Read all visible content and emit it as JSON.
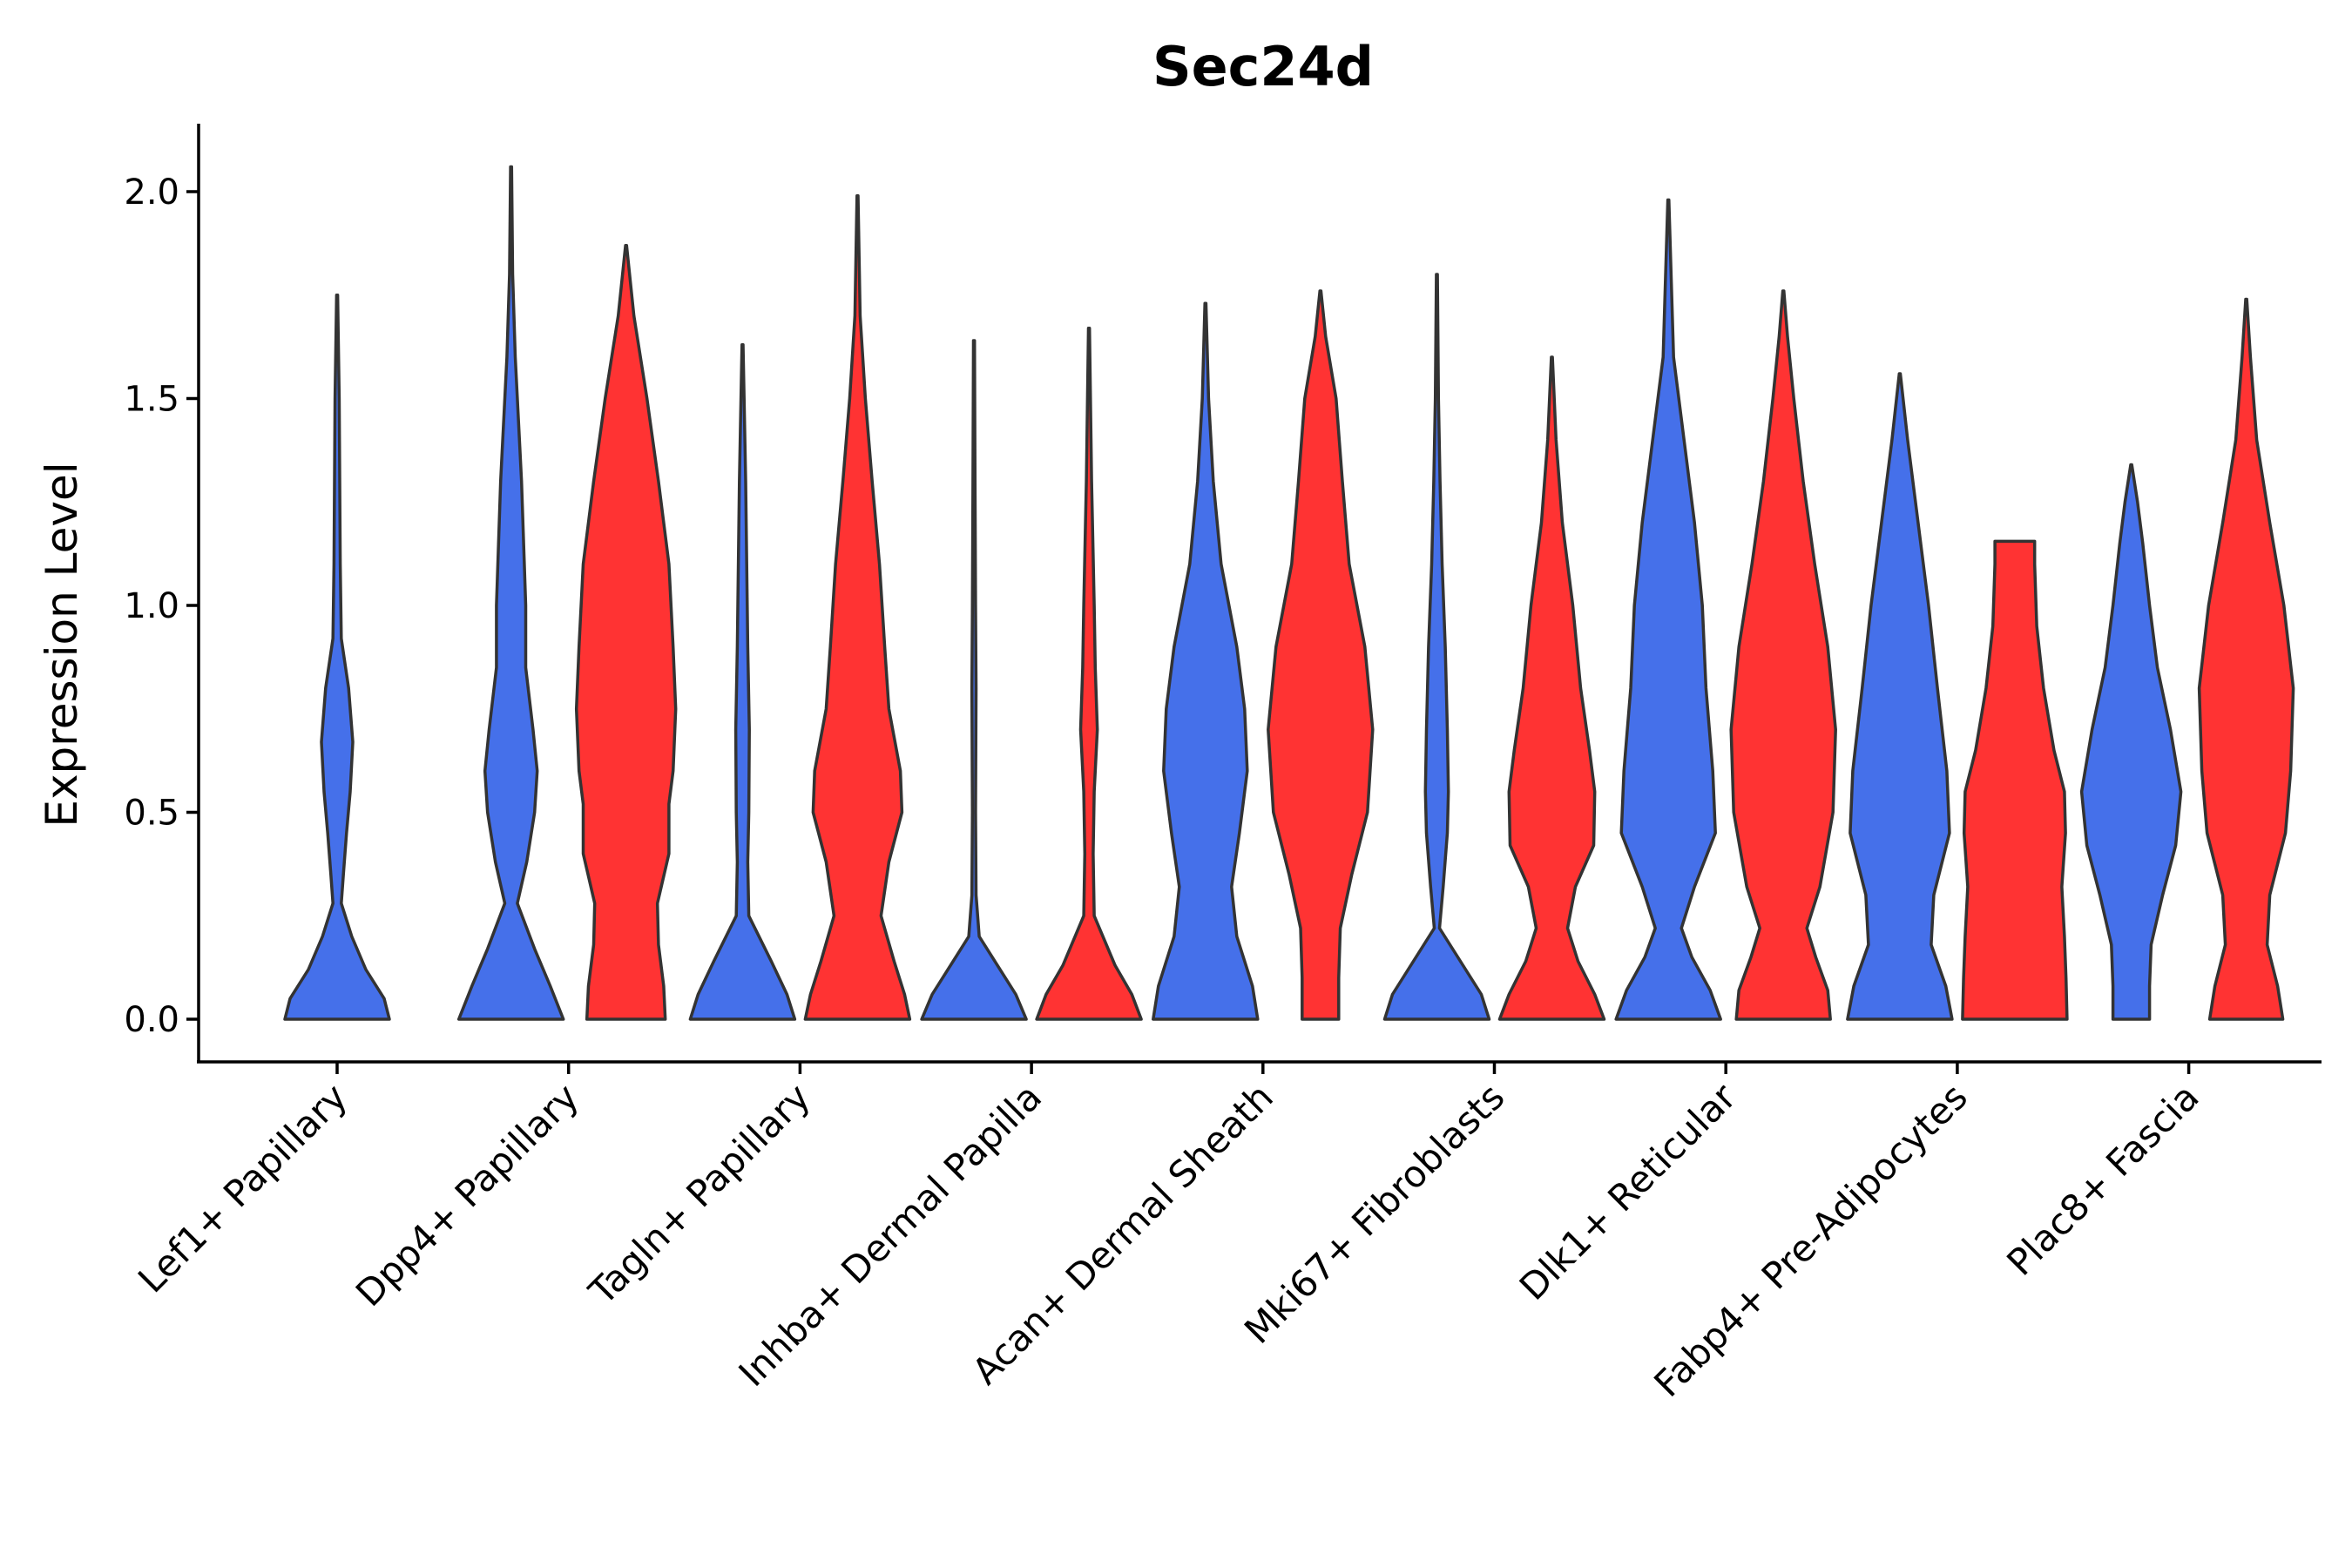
{
  "chart_data": {
    "type": "violin",
    "title": "Sec24d",
    "xlabel": "",
    "ylabel": "Expression Level",
    "ylim": [
      -0.1,
      2.15
    ],
    "yticks": [
      0.0,
      0.5,
      1.0,
      1.5,
      2.0
    ],
    "ytick_labels": [
      "0.0",
      "0.5",
      "1.0",
      "1.5",
      "2.0"
    ],
    "colors": {
      "blue": "#4570ea",
      "red": "#ff3333",
      "outline": "#333333"
    },
    "groups": [
      {
        "name": "Lef1+ Papillary",
        "violins": [
          {
            "color": "blue",
            "offset": 0,
            "max": 1.75,
            "profile": [
              [
                0,
                1.0
              ],
              [
                0.05,
                0.9
              ],
              [
                0.12,
                0.55
              ],
              [
                0.2,
                0.28
              ],
              [
                0.28,
                0.08
              ],
              [
                0.35,
                0.12
              ],
              [
                0.45,
                0.18
              ],
              [
                0.55,
                0.25
              ],
              [
                0.67,
                0.3
              ],
              [
                0.8,
                0.22
              ],
              [
                0.92,
                0.08
              ],
              [
                1.1,
                0.06
              ],
              [
                1.3,
                0.05
              ],
              [
                1.5,
                0.04
              ],
              [
                1.75,
                0.01
              ]
            ]
          }
        ]
      },
      {
        "name": "Dpp4+ Papillary",
        "violins": [
          {
            "color": "blue",
            "offset": -0.38,
            "max": 2.06,
            "profile": [
              [
                0,
                1.0
              ],
              [
                0.08,
                0.75
              ],
              [
                0.17,
                0.45
              ],
              [
                0.28,
                0.12
              ],
              [
                0.38,
                0.3
              ],
              [
                0.5,
                0.45
              ],
              [
                0.6,
                0.5
              ],
              [
                0.7,
                0.42
              ],
              [
                0.85,
                0.28
              ],
              [
                1.0,
                0.28
              ],
              [
                1.3,
                0.2
              ],
              [
                1.6,
                0.08
              ],
              [
                1.8,
                0.03
              ],
              [
                2.06,
                0.01
              ]
            ]
          },
          {
            "color": "red",
            "offset": 0.38,
            "max": 1.87,
            "profile": [
              [
                0,
                0.75
              ],
              [
                0.08,
                0.72
              ],
              [
                0.18,
                0.62
              ],
              [
                0.28,
                0.6
              ],
              [
                0.4,
                0.82
              ],
              [
                0.52,
                0.82
              ],
              [
                0.6,
                0.9
              ],
              [
                0.75,
                0.95
              ],
              [
                0.9,
                0.9
              ],
              [
                1.1,
                0.82
              ],
              [
                1.3,
                0.62
              ],
              [
                1.5,
                0.4
              ],
              [
                1.7,
                0.15
              ],
              [
                1.87,
                0.01
              ]
            ]
          }
        ]
      },
      {
        "name": "Tagln+ Papillary",
        "violins": [
          {
            "color": "blue",
            "offset": -0.38,
            "max": 1.63,
            "profile": [
              [
                0,
                1.0
              ],
              [
                0.06,
                0.85
              ],
              [
                0.14,
                0.55
              ],
              [
                0.25,
                0.12
              ],
              [
                0.38,
                0.1
              ],
              [
                0.5,
                0.12
              ],
              [
                0.7,
                0.13
              ],
              [
                0.9,
                0.1
              ],
              [
                1.1,
                0.08
              ],
              [
                1.3,
                0.06
              ],
              [
                1.5,
                0.03
              ],
              [
                1.63,
                0.01
              ]
            ]
          },
          {
            "color": "red",
            "offset": 0.38,
            "max": 1.99,
            "profile": [
              [
                0,
                1.0
              ],
              [
                0.06,
                0.9
              ],
              [
                0.14,
                0.7
              ],
              [
                0.25,
                0.45
              ],
              [
                0.38,
                0.6
              ],
              [
                0.5,
                0.85
              ],
              [
                0.6,
                0.82
              ],
              [
                0.75,
                0.6
              ],
              [
                0.9,
                0.52
              ],
              [
                1.1,
                0.42
              ],
              [
                1.3,
                0.28
              ],
              [
                1.5,
                0.15
              ],
              [
                1.7,
                0.05
              ],
              [
                1.99,
                0.01
              ]
            ]
          }
        ]
      },
      {
        "name": "Inhba+ Dermal Papilla",
        "violins": [
          {
            "color": "blue",
            "offset": -0.38,
            "max": 1.64,
            "profile": [
              [
                0,
                1.0
              ],
              [
                0.06,
                0.8
              ],
              [
                0.13,
                0.45
              ],
              [
                0.2,
                0.1
              ],
              [
                0.3,
                0.04
              ],
              [
                0.5,
                0.03
              ],
              [
                0.8,
                0.04
              ],
              [
                1.0,
                0.03
              ],
              [
                1.3,
                0.02
              ],
              [
                1.64,
                0.01
              ]
            ]
          },
          {
            "color": "red",
            "offset": 0.38,
            "max": 1.67,
            "profile": [
              [
                0,
                1.0
              ],
              [
                0.06,
                0.82
              ],
              [
                0.13,
                0.5
              ],
              [
                0.25,
                0.1
              ],
              [
                0.4,
                0.08
              ],
              [
                0.55,
                0.1
              ],
              [
                0.7,
                0.16
              ],
              [
                0.85,
                0.12
              ],
              [
                1.0,
                0.1
              ],
              [
                1.3,
                0.05
              ],
              [
                1.67,
                0.01
              ]
            ]
          }
        ]
      },
      {
        "name": "Acan+ Dermal Sheath",
        "violins": [
          {
            "color": "blue",
            "offset": -0.38,
            "max": 1.73,
            "profile": [
              [
                0,
                1.0
              ],
              [
                0.08,
                0.9
              ],
              [
                0.2,
                0.6
              ],
              [
                0.32,
                0.5
              ],
              [
                0.45,
                0.65
              ],
              [
                0.6,
                0.8
              ],
              [
                0.75,
                0.75
              ],
              [
                0.9,
                0.6
              ],
              [
                1.1,
                0.3
              ],
              [
                1.3,
                0.15
              ],
              [
                1.5,
                0.06
              ],
              [
                1.73,
                0.01
              ]
            ]
          },
          {
            "color": "red",
            "offset": 0.38,
            "max": 1.76,
            "profile": [
              [
                0,
                0.35
              ],
              [
                0.1,
                0.35
              ],
              [
                0.22,
                0.38
              ],
              [
                0.35,
                0.6
              ],
              [
                0.5,
                0.9
              ],
              [
                0.7,
                1.0
              ],
              [
                0.9,
                0.85
              ],
              [
                1.1,
                0.55
              ],
              [
                1.3,
                0.42
              ],
              [
                1.5,
                0.3
              ],
              [
                1.65,
                0.1
              ],
              [
                1.76,
                0.01
              ]
            ]
          }
        ]
      },
      {
        "name": "Mki67+ Fibroblasts",
        "violins": [
          {
            "color": "blue",
            "offset": -0.38,
            "max": 1.8,
            "profile": [
              [
                0,
                1.0
              ],
              [
                0.06,
                0.85
              ],
              [
                0.14,
                0.45
              ],
              [
                0.22,
                0.05
              ],
              [
                0.32,
                0.12
              ],
              [
                0.45,
                0.2
              ],
              [
                0.55,
                0.22
              ],
              [
                0.7,
                0.2
              ],
              [
                0.9,
                0.16
              ],
              [
                1.1,
                0.1
              ],
              [
                1.3,
                0.06
              ],
              [
                1.5,
                0.03
              ],
              [
                1.8,
                0.01
              ]
            ]
          },
          {
            "color": "red",
            "offset": 0.38,
            "max": 1.6,
            "profile": [
              [
                0,
                1.0
              ],
              [
                0.06,
                0.82
              ],
              [
                0.14,
                0.5
              ],
              [
                0.22,
                0.3
              ],
              [
                0.32,
                0.45
              ],
              [
                0.42,
                0.8
              ],
              [
                0.55,
                0.82
              ],
              [
                0.65,
                0.72
              ],
              [
                0.8,
                0.55
              ],
              [
                1.0,
                0.4
              ],
              [
                1.2,
                0.2
              ],
              [
                1.4,
                0.08
              ],
              [
                1.6,
                0.01
              ]
            ]
          }
        ]
      },
      {
        "name": "Dlk1+ Reticular",
        "violins": [
          {
            "color": "blue",
            "offset": -0.38,
            "max": 1.98,
            "profile": [
              [
                0,
                1.0
              ],
              [
                0.07,
                0.8
              ],
              [
                0.15,
                0.45
              ],
              [
                0.22,
                0.25
              ],
              [
                0.32,
                0.5
              ],
              [
                0.45,
                0.9
              ],
              [
                0.6,
                0.85
              ],
              [
                0.8,
                0.72
              ],
              [
                1.0,
                0.65
              ],
              [
                1.2,
                0.5
              ],
              [
                1.4,
                0.3
              ],
              [
                1.6,
                0.1
              ],
              [
                1.98,
                0.01
              ]
            ]
          },
          {
            "color": "red",
            "offset": 0.38,
            "max": 1.76,
            "profile": [
              [
                0,
                0.9
              ],
              [
                0.07,
                0.85
              ],
              [
                0.15,
                0.62
              ],
              [
                0.22,
                0.45
              ],
              [
                0.32,
                0.7
              ],
              [
                0.5,
                0.95
              ],
              [
                0.7,
                1.0
              ],
              [
                0.9,
                0.85
              ],
              [
                1.1,
                0.6
              ],
              [
                1.3,
                0.38
              ],
              [
                1.5,
                0.2
              ],
              [
                1.65,
                0.08
              ],
              [
                1.76,
                0.01
              ]
            ]
          }
        ]
      },
      {
        "name": "Fabp4+ Pre-Adipocytes",
        "violins": [
          {
            "color": "blue",
            "offset": -0.38,
            "max": 1.56,
            "profile": [
              [
                0,
                1.0
              ],
              [
                0.08,
                0.88
              ],
              [
                0.18,
                0.6
              ],
              [
                0.3,
                0.65
              ],
              [
                0.45,
                0.95
              ],
              [
                0.6,
                0.9
              ],
              [
                0.8,
                0.72
              ],
              [
                1.0,
                0.55
              ],
              [
                1.2,
                0.35
              ],
              [
                1.4,
                0.15
              ],
              [
                1.56,
                0.01
              ]
            ]
          },
          {
            "color": "red",
            "offset": 0.38,
            "max": 1.155,
            "profile": [
              [
                0,
                1.0
              ],
              [
                0.1,
                0.98
              ],
              [
                0.2,
                0.95
              ],
              [
                0.32,
                0.9
              ],
              [
                0.45,
                0.97
              ],
              [
                0.55,
                0.95
              ],
              [
                0.65,
                0.75
              ],
              [
                0.8,
                0.55
              ],
              [
                0.95,
                0.42
              ],
              [
                1.1,
                0.38
              ],
              [
                1.155,
                0.38
              ]
            ]
          }
        ]
      },
      {
        "name": "Plac8+ Fascia",
        "violins": [
          {
            "color": "blue",
            "offset": -0.38,
            "max": 1.34,
            "profile": [
              [
                0,
                0.35
              ],
              [
                0.08,
                0.35
              ],
              [
                0.18,
                0.38
              ],
              [
                0.3,
                0.6
              ],
              [
                0.42,
                0.85
              ],
              [
                0.55,
                0.95
              ],
              [
                0.7,
                0.75
              ],
              [
                0.85,
                0.5
              ],
              [
                1.0,
                0.35
              ],
              [
                1.15,
                0.22
              ],
              [
                1.25,
                0.12
              ],
              [
                1.34,
                0.01
              ]
            ]
          },
          {
            "color": "red",
            "offset": 0.38,
            "max": 1.74,
            "profile": [
              [
                0,
                0.7
              ],
              [
                0.08,
                0.6
              ],
              [
                0.18,
                0.4
              ],
              [
                0.3,
                0.45
              ],
              [
                0.45,
                0.75
              ],
              [
                0.6,
                0.85
              ],
              [
                0.8,
                0.9
              ],
              [
                1.0,
                0.72
              ],
              [
                1.2,
                0.45
              ],
              [
                1.4,
                0.2
              ],
              [
                1.6,
                0.08
              ],
              [
                1.74,
                0.01
              ]
            ]
          }
        ]
      }
    ]
  }
}
